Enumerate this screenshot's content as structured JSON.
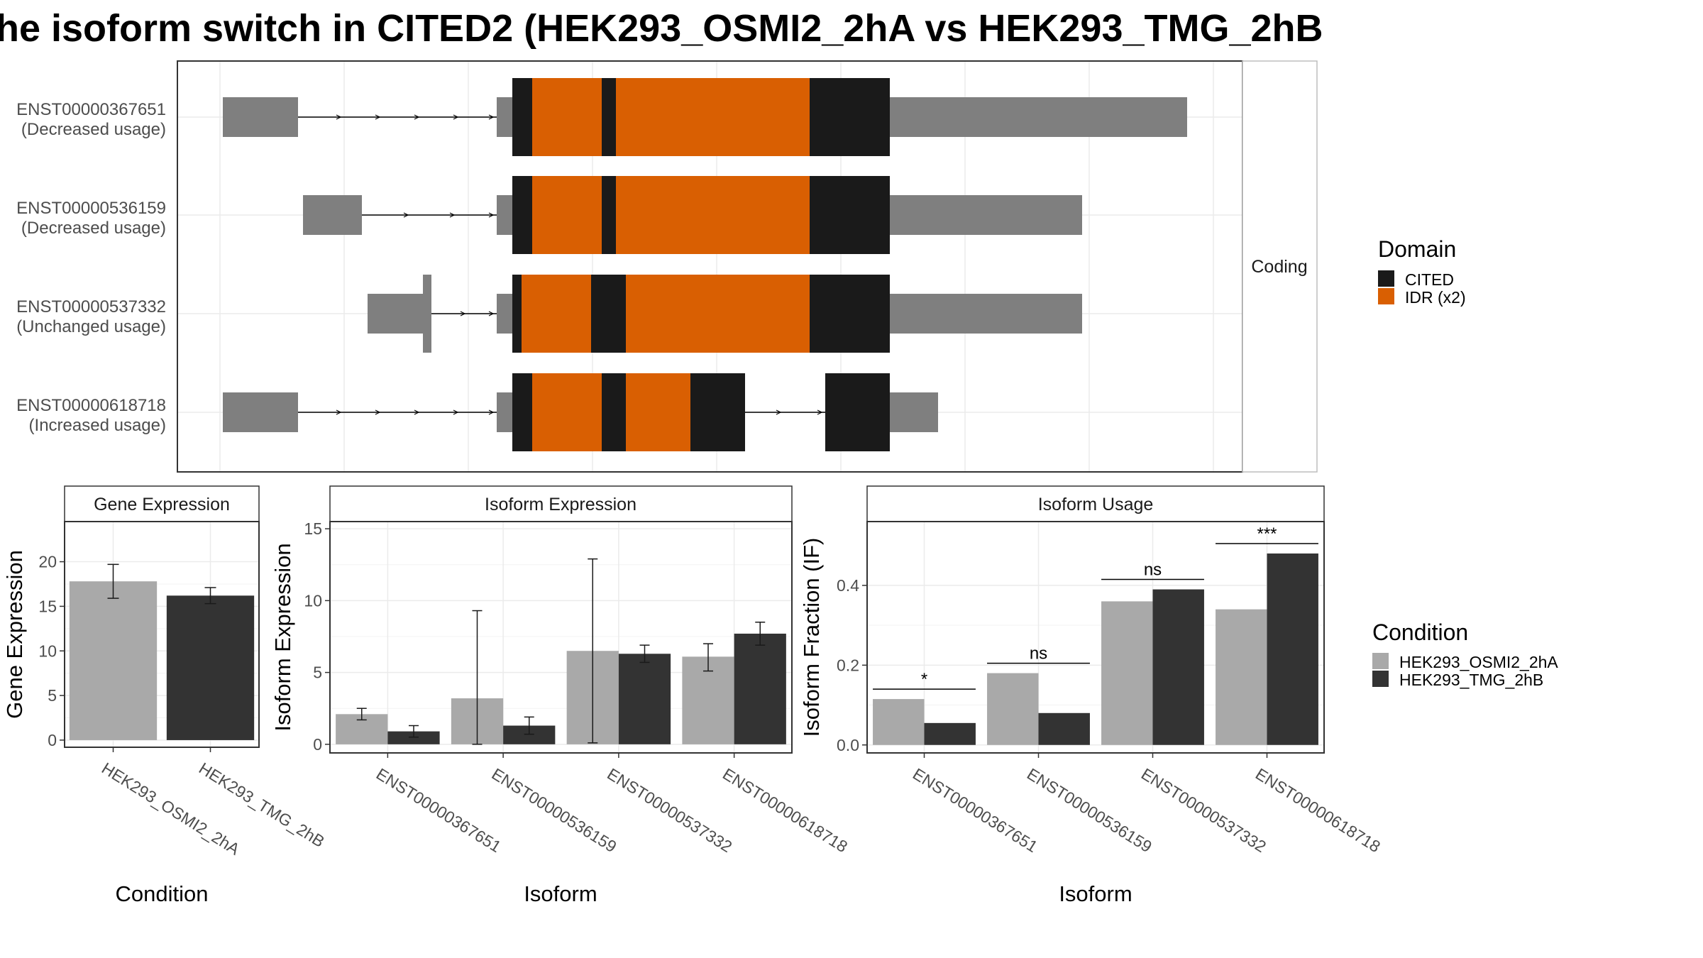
{
  "title": "he isoform switch in CITED2 (HEK293_OSMI2_2hA vs HEK293_TMG_2hB",
  "colors": {
    "cited": "#1a1a1a",
    "idr": "#d95f02",
    "utr": "#7f7f7f",
    "cond_a": "#a9a9a9",
    "cond_b": "#333333"
  },
  "structure_panel": {
    "strip_label": "Coding",
    "transcripts": [
      {
        "id": "ENST00000367651",
        "usage": "(Decreased usage)"
      },
      {
        "id": "ENST00000536159",
        "usage": "(Decreased usage)"
      },
      {
        "id": "ENST00000537332",
        "usage": "(Unchanged usage)"
      },
      {
        "id": "ENST00000618718",
        "usage": "(Increased usage)"
      }
    ]
  },
  "domain_legend": {
    "title": "Domain",
    "items": [
      {
        "label": "CITED",
        "color": "#1a1a1a"
      },
      {
        "label": "IDR (x2)",
        "color": "#d95f02"
      }
    ]
  },
  "condition_legend": {
    "title": "Condition",
    "items": [
      {
        "label": "HEK293_OSMI2_2hA",
        "color": "#a9a9a9"
      },
      {
        "label": "HEK293_TMG_2hB",
        "color": "#333333"
      }
    ]
  },
  "chart_data": [
    {
      "type": "bar",
      "title": "Gene Expression",
      "xlabel": "Condition",
      "ylabel": "Gene Expression",
      "categories": [
        "HEK293_OSMI2_2hA",
        "HEK293_TMG_2hB"
      ],
      "values": [
        17.8,
        16.2
      ],
      "err_low": [
        15.9,
        15.3
      ],
      "err_high": [
        19.7,
        17.1
      ],
      "ylim": [
        -0.8,
        24.5
      ],
      "yticks": [
        0,
        5,
        10,
        15,
        20
      ]
    },
    {
      "type": "bar",
      "title": "Isoform Expression",
      "xlabel": "Isoform",
      "ylabel": "Isoform Expression",
      "categories": [
        "ENST00000367651",
        "ENST00000536159",
        "ENST00000537332",
        "ENST00000618718"
      ],
      "series": [
        {
          "name": "HEK293_OSMI2_2hA",
          "values": [
            2.1,
            3.2,
            6.5,
            6.1
          ],
          "err_low": [
            1.7,
            0.0,
            0.1,
            5.1
          ],
          "err_high": [
            2.5,
            9.3,
            12.9,
            7.0
          ]
        },
        {
          "name": "HEK293_TMG_2hB",
          "values": [
            0.9,
            1.3,
            6.3,
            7.7
          ],
          "err_low": [
            0.5,
            0.7,
            5.7,
            6.9
          ],
          "err_high": [
            1.3,
            1.9,
            6.9,
            8.5
          ]
        }
      ],
      "ylim": [
        -0.6,
        15.5
      ],
      "yticks": [
        0,
        5,
        10,
        15
      ]
    },
    {
      "type": "bar",
      "title": "Isoform Usage",
      "xlabel": "Isoform",
      "ylabel": "Isoform Fraction (IF)",
      "categories": [
        "ENST00000367651",
        "ENST00000536159",
        "ENST00000537332",
        "ENST00000618718"
      ],
      "series": [
        {
          "name": "HEK293_OSMI2_2hA",
          "values": [
            0.115,
            0.18,
            0.36,
            0.34
          ]
        },
        {
          "name": "HEK293_TMG_2hB",
          "values": [
            0.055,
            0.08,
            0.39,
            0.48
          ]
        }
      ],
      "significance": [
        "*",
        "ns",
        "ns",
        "***"
      ],
      "ylim": [
        -0.02,
        0.56
      ],
      "yticks": [
        "0.0",
        "0.2",
        "0.4"
      ]
    }
  ]
}
